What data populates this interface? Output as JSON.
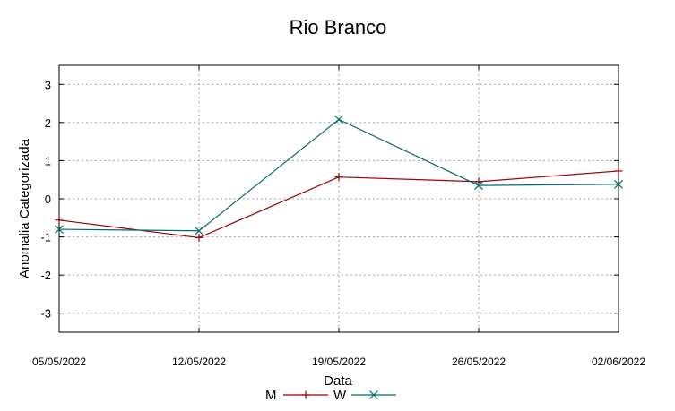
{
  "chart_data": {
    "type": "line",
    "title": "Rio Branco",
    "xlabel": "Data",
    "ylabel": "Anomalia Categorizada",
    "categories": [
      "05/05/2022",
      "12/05/2022",
      "19/05/2022",
      "26/05/2022",
      "02/06/2022"
    ],
    "yticks": [
      "-3",
      "-2",
      "-1",
      "0",
      "1",
      "2",
      "3"
    ],
    "ylim": [
      -3.5,
      3.5
    ],
    "grid": true,
    "legend_position": "bottom",
    "series": [
      {
        "name": "M",
        "color": "#990000",
        "marker": "plus",
        "values": [
          -0.56,
          -1.02,
          0.57,
          0.45,
          0.73
        ]
      },
      {
        "name": "W",
        "color": "#006b6b",
        "marker": "cross",
        "values": [
          -0.8,
          -0.84,
          2.08,
          0.35,
          0.38
        ]
      }
    ]
  }
}
